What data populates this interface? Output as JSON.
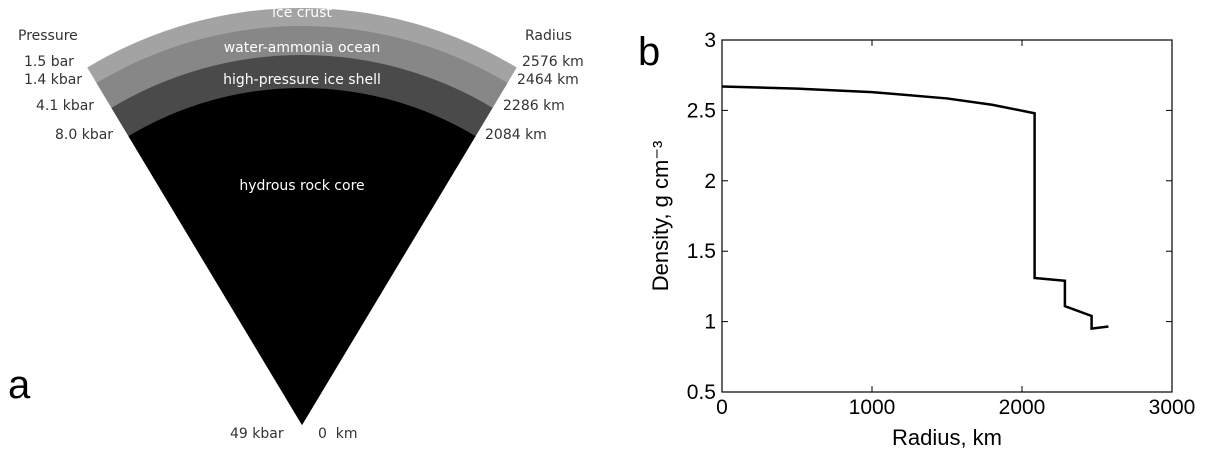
{
  "diagram": {
    "panel_label": "a",
    "pressure_header": "Pressure",
    "radius_header": "Radius",
    "layers": [
      "ice crust",
      "water-ammonia ocean",
      "high-pressure ice shell",
      "hydrous rock core"
    ],
    "pressure_labels": [
      "1.5 bar",
      "1.4 kbar",
      "4.1 kbar",
      "8.0 kbar",
      "49 kbar"
    ],
    "radius_labels": [
      "2576 km",
      "2464 km",
      "2286 km",
      "2084 km",
      "0  km"
    ]
  },
  "chart_data": {
    "type": "line",
    "panel_label": "b",
    "xlabel": "Radius, km",
    "ylabel": "Density, g cm⁻³",
    "x": [
      0,
      500,
      1000,
      1500,
      1800,
      2084,
      2084,
      2286,
      2286,
      2464,
      2464,
      2576
    ],
    "values": [
      2.67,
      2.655,
      2.63,
      2.585,
      2.54,
      2.48,
      1.31,
      1.29,
      1.11,
      1.04,
      0.95,
      0.965
    ],
    "color": "#000000",
    "xlim": [
      0,
      3000
    ],
    "xticks": [
      0,
      1000,
      2000,
      3000
    ],
    "ylim": [
      0.5,
      3
    ],
    "yticks": [
      0.5,
      1,
      1.5,
      2,
      2.5,
      3
    ]
  }
}
